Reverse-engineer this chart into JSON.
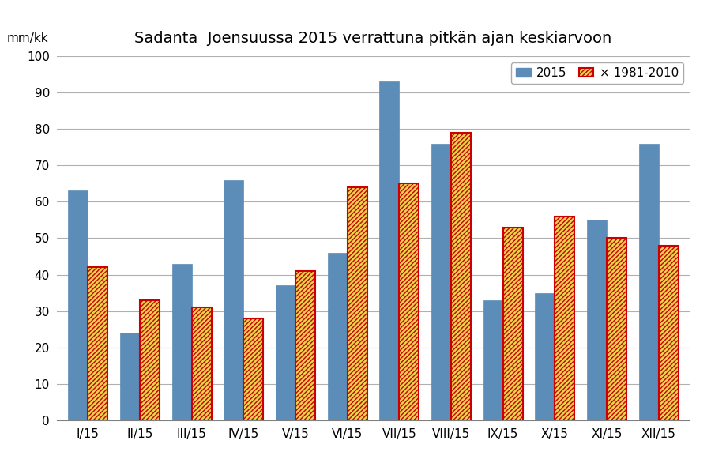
{
  "title": "Sadanta  Joensuussa 2015 verrattuna pitkän ajan keskiarvoon",
  "ylabel": "mm/kk",
  "categories": [
    "I/15",
    "II/15",
    "III/15",
    "IV/15",
    "V/15",
    "VI/15",
    "VII/15",
    "VIII/15",
    "IX/15",
    "X/15",
    "XI/15",
    "XII/15"
  ],
  "values_2015": [
    63,
    24,
    43,
    66,
    37,
    46,
    93,
    76,
    33,
    35,
    55,
    76
  ],
  "values_avg": [
    42,
    33,
    31,
    28,
    41,
    64,
    65,
    79,
    53,
    56,
    50,
    48
  ],
  "bar_color_2015": "#5B8DB8",
  "bar_color_avg_fill": "#E8D44D",
  "bar_color_avg_edge": "#CC0000",
  "ylim": [
    0,
    100
  ],
  "yticks": [
    0,
    10,
    20,
    30,
    40,
    50,
    60,
    70,
    80,
    90,
    100
  ],
  "legend_2015": "2015",
  "legend_avg": "× 1981-2010",
  "background_color": "#ffffff",
  "title_fontsize": 14,
  "bar_width": 0.38
}
